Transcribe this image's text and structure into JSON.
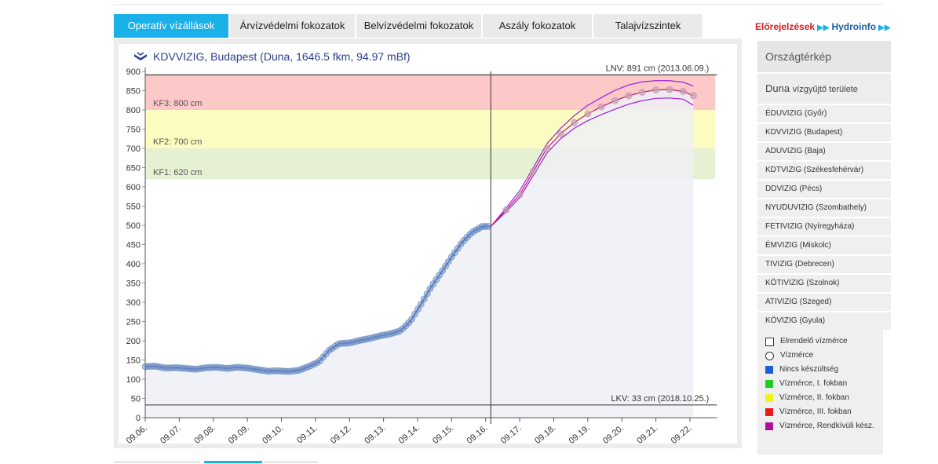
{
  "tabs": [
    {
      "label": "Operatív vízállások",
      "active": true
    },
    {
      "label": "Árvízvédelmi fokozatok",
      "active": false
    },
    {
      "label": "Belvízvédelmi fokozatok",
      "active": false
    },
    {
      "label": "Aszály fokozatok",
      "active": false
    },
    {
      "label": "Talajvízszintek",
      "active": false
    }
  ],
  "toplinks": {
    "forecast": "Előrejelzések",
    "hydroinfo": "Hydroinfo"
  },
  "chart_title": "KDVVIZIG, Budapest (Duna, 1646.5 fkm, 94.97 mBf)",
  "sidebar": {
    "map_label": "Országtérkép",
    "basin_main": "Duna",
    "basin_small": "vízgyűjtő területe",
    "items": [
      "ÉDUVIZIG (Győr)",
      "KDVVIZIG (Budapest)",
      "ADUVIZIG (Baja)",
      "KDTVIZIG (Székesfehérvár)",
      "DDVIZIG (Pécs)",
      "NYUDUVIZIG (Szombathely)",
      "FETIVIZIG (Nyíregyháza)",
      "ÉMVIZIG (Miskolc)",
      "TIVIZIG (Debrecen)",
      "KÖTIVIZIG (Szolnok)",
      "ATIVIZIG (Szeged)",
      "KÖVIZIG (Gyula)"
    ]
  },
  "legend": [
    {
      "label": "Elrendelő vízmérce",
      "shape": "square-outline",
      "color": "#ffffff"
    },
    {
      "label": "Vízmérce",
      "shape": "circle-outline",
      "color": "#ffffff"
    },
    {
      "label": "Nincs készültség",
      "shape": "square",
      "color": "#1a5fd8"
    },
    {
      "label": "Vízmérce, I. fokban",
      "shape": "square",
      "color": "#22cc22"
    },
    {
      "label": "Vízmérce, II. fokban",
      "shape": "square",
      "color": "#f2f21a"
    },
    {
      "label": "Vízmérce, III. fokban",
      "shape": "square",
      "color": "#e81a1a"
    },
    {
      "label": "Vízmérce, Rendkívüli kész.",
      "shape": "square",
      "color": "#b0109a"
    }
  ],
  "chart_data": {
    "type": "line",
    "title": "KDVVIZIG, Budapest (Duna, 1646.5 fkm, 94.97 mBf)",
    "x_tick_labels": [
      "09.06.",
      "09.07.",
      "09.08.",
      "09.09.",
      "09.10.",
      "09.11.",
      "09.12.",
      "09.13.",
      "09.14.",
      "09.15.",
      "09.16.",
      "09.17.",
      "09.18.",
      "09.19.",
      "09.20.",
      "09.21.",
      "09.22."
    ],
    "x_range_days": [
      0,
      16.6
    ],
    "ylim": [
      0,
      900
    ],
    "y_ticks": [
      0,
      50,
      100,
      150,
      200,
      250,
      300,
      350,
      400,
      450,
      500,
      550,
      600,
      650,
      700,
      750,
      800,
      850,
      900
    ],
    "bands": [
      {
        "label": "KF1: 620 cm",
        "from": 620,
        "to": 700,
        "color": "#e6f0d2"
      },
      {
        "label": "KF2: 700 cm",
        "from": 700,
        "to": 800,
        "color": "#fdfcc0"
      },
      {
        "label": "KF3: 800 cm",
        "from": 800,
        "to": 890,
        "color": "#fcc8c8"
      }
    ],
    "reference_lines": [
      {
        "label": "LNV: 891 cm (2013.06.09.)",
        "value": 891
      },
      {
        "label": "LKV: 33 cm (2018.10.25.)",
        "value": 33
      }
    ],
    "now_day": 10.15,
    "series": [
      {
        "kind": "measured",
        "x": [
          0,
          0.3,
          0.6,
          0.9,
          1.2,
          1.5,
          1.8,
          2.1,
          2.4,
          2.7,
          3.0,
          3.3,
          3.6,
          3.9,
          4.2,
          4.5,
          4.8,
          5.1,
          5.4,
          5.7,
          6.0,
          6.3,
          6.6,
          6.9,
          7.2,
          7.5,
          7.8,
          8.1,
          8.4,
          8.7,
          9.0,
          9.3,
          9.6,
          9.9,
          10.15
        ],
        "y": [
          133,
          134,
          129,
          130,
          128,
          126,
          130,
          131,
          128,
          131,
          129,
          125,
          121,
          122,
          120,
          123,
          133,
          145,
          175,
          193,
          194,
          201,
          206,
          213,
          218,
          226,
          252,
          295,
          340,
          378,
          418,
          455,
          482,
          497,
          497
        ]
      },
      {
        "kind": "forecast",
        "x": [
          10.15,
          10.6,
          11.0,
          11.4,
          11.8,
          12.2,
          12.6,
          13.0,
          13.4,
          13.8,
          14.2,
          14.6,
          15.0,
          15.4,
          15.8,
          16.1
        ],
        "y": [
          497,
          540,
          580,
          640,
          700,
          738,
          767,
          790,
          808,
          824,
          837,
          846,
          852,
          853,
          848,
          837
        ]
      },
      {
        "kind": "forecast_upper",
        "x": [
          10.15,
          10.6,
          11.0,
          11.4,
          11.8,
          12.2,
          12.6,
          13.0,
          13.4,
          13.8,
          14.2,
          14.6,
          15.0,
          15.4,
          15.8,
          16.1
        ],
        "y": [
          497,
          545,
          590,
          650,
          712,
          752,
          785,
          812,
          832,
          851,
          865,
          873,
          876,
          876,
          872,
          862
        ]
      },
      {
        "kind": "forecast_lower",
        "x": [
          10.15,
          10.6,
          11.0,
          11.4,
          11.8,
          12.2,
          12.6,
          13.0,
          13.4,
          13.8,
          14.2,
          14.6,
          15.0,
          15.4,
          15.8,
          16.1
        ],
        "y": [
          497,
          535,
          572,
          630,
          688,
          725,
          752,
          772,
          788,
          802,
          815,
          824,
          830,
          831,
          828,
          812
        ]
      }
    ]
  }
}
